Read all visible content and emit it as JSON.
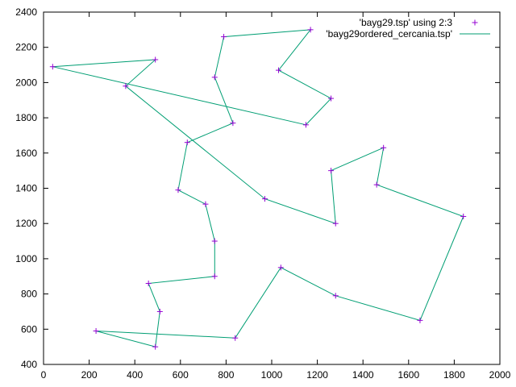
{
  "chart_data": {
    "type": "line",
    "title": "",
    "xlabel": "",
    "ylabel": "",
    "xlim": [
      0,
      2000
    ],
    "ylim": [
      400,
      2400
    ],
    "x_ticks": [
      0,
      200,
      400,
      600,
      800,
      1000,
      1200,
      1400,
      1600,
      1800,
      2000
    ],
    "y_ticks": [
      400,
      600,
      800,
      1000,
      1200,
      1400,
      1600,
      1800,
      2000,
      2200,
      2400
    ],
    "grid": false,
    "legend_position": "top-right",
    "series": [
      {
        "name": "'bayg29.tsp' using 2:3",
        "kind": "points",
        "color": "#9400d3",
        "points": [
          [
            1150,
            1760
          ],
          [
            630,
            1660
          ],
          [
            40,
            2090
          ],
          [
            750,
            1100
          ],
          [
            750,
            2030
          ],
          [
            1030,
            2070
          ],
          [
            1650,
            650
          ],
          [
            1490,
            1630
          ],
          [
            790,
            2260
          ],
          [
            710,
            1310
          ],
          [
            840,
            550
          ],
          [
            1170,
            2300
          ],
          [
            970,
            1340
          ],
          [
            510,
            700
          ],
          [
            750,
            900
          ],
          [
            1280,
            1200
          ],
          [
            230,
            590
          ],
          [
            460,
            860
          ],
          [
            1040,
            950
          ],
          [
            590,
            1390
          ],
          [
            830,
            1770
          ],
          [
            490,
            500
          ],
          [
            1840,
            1240
          ],
          [
            1260,
            1500
          ],
          [
            1280,
            790
          ],
          [
            490,
            2130
          ],
          [
            1460,
            1420
          ],
          [
            1260,
            1910
          ],
          [
            360,
            1980
          ]
        ]
      },
      {
        "name": "'bayg29ordered_cercania.tsp'",
        "kind": "line",
        "color": "#009e73",
        "points": [
          [
            1150,
            1760
          ],
          [
            40,
            2090
          ],
          [
            490,
            2130
          ],
          [
            360,
            1980
          ],
          [
            970,
            1340
          ],
          [
            1280,
            1200
          ],
          [
            1260,
            1500
          ],
          [
            1490,
            1630
          ],
          [
            1460,
            1420
          ],
          [
            1840,
            1240
          ],
          [
            1650,
            650
          ],
          [
            1280,
            790
          ],
          [
            1040,
            950
          ],
          [
            840,
            550
          ],
          [
            230,
            590
          ],
          [
            490,
            500
          ],
          [
            510,
            700
          ],
          [
            460,
            860
          ],
          [
            750,
            900
          ],
          [
            750,
            1100
          ],
          [
            710,
            1310
          ],
          [
            590,
            1390
          ],
          [
            630,
            1660
          ],
          [
            830,
            1770
          ],
          [
            750,
            2030
          ],
          [
            790,
            2260
          ],
          [
            1170,
            2300
          ],
          [
            1030,
            2070
          ],
          [
            1260,
            1910
          ],
          [
            1150,
            1760
          ]
        ]
      }
    ]
  }
}
